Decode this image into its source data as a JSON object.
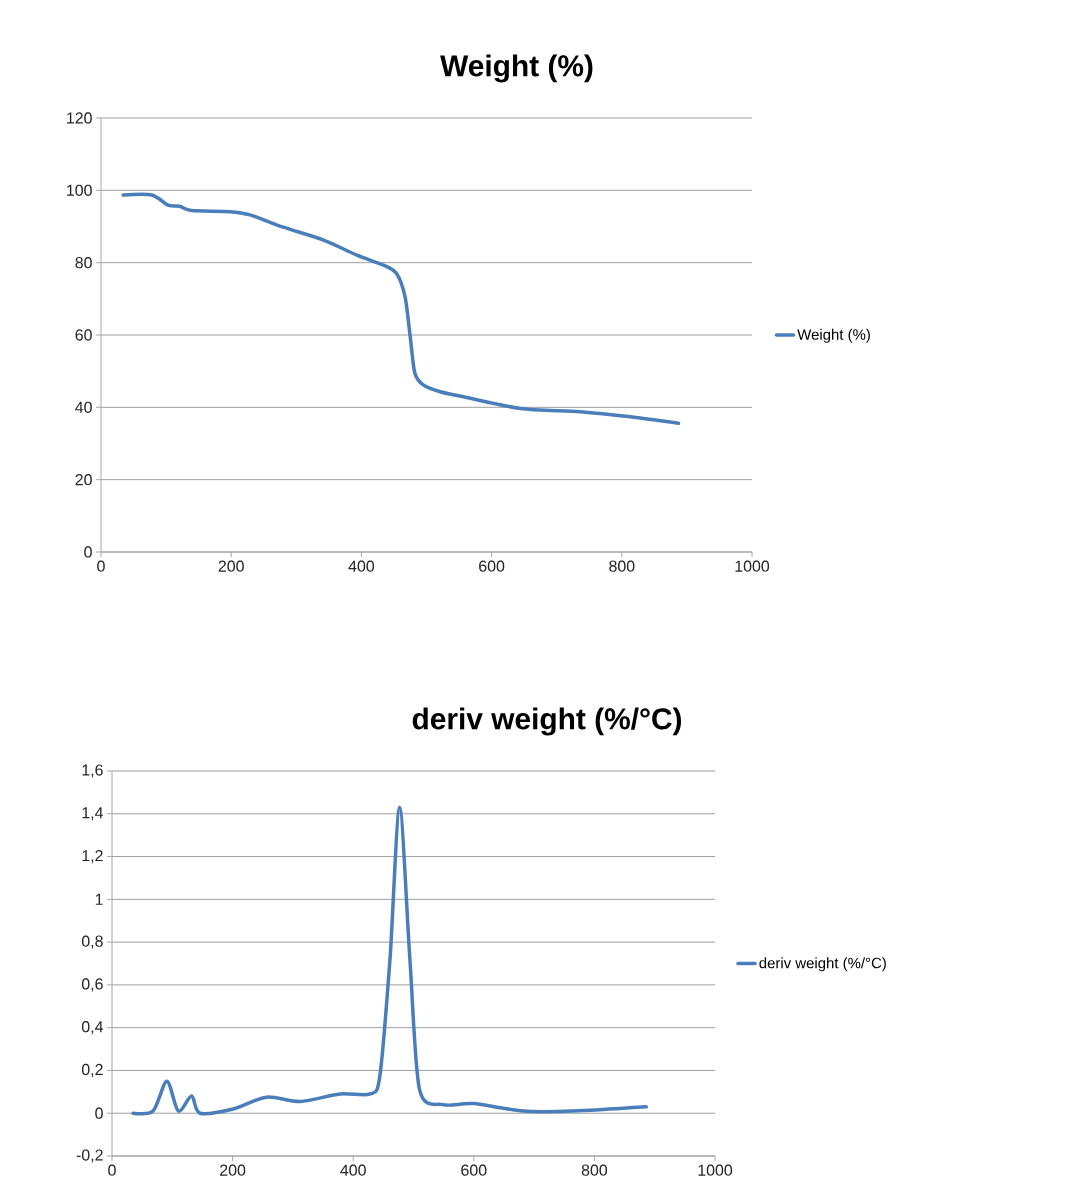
{
  "chart_data": [
    {
      "type": "line",
      "title": "Weight (%)",
      "xlim": [
        0,
        1000
      ],
      "ylim": [
        0,
        120
      ],
      "xticks": [
        0,
        200,
        400,
        600,
        800,
        1000
      ],
      "yticks": [
        0,
        20,
        40,
        60,
        80,
        100,
        120
      ],
      "grid": "y",
      "legend": "right",
      "series": [
        {
          "name": "Weight (%)",
          "color": "#4a7ebb",
          "x": [
            34,
            78,
            103,
            121,
            139,
            198,
            229,
            280,
            341,
            393,
            434,
            454,
            467,
            475,
            482,
            495,
            521,
            557,
            644,
            736,
            813,
            887
          ],
          "values": [
            98.7,
            98.7,
            95.9,
            95.6,
            94.4,
            94.1,
            93.2,
            89.8,
            86.3,
            82.1,
            79.3,
            77,
            70.6,
            59.5,
            49.5,
            46.2,
            44.3,
            42.9,
            39.7,
            38.8,
            37.4,
            35.6
          ]
        }
      ]
    },
    {
      "type": "line",
      "title": "deriv weight (%/°C)",
      "xlim": [
        0,
        1000
      ],
      "ylim": [
        -0.2,
        1.6
      ],
      "xticks": [
        0,
        200,
        400,
        600,
        800,
        1000
      ],
      "yticks": [
        {
          "value": -0.2,
          "label": "-0,2"
        },
        0,
        {
          "value": 0.2,
          "label": "0,2"
        },
        {
          "value": 0.4,
          "label": "0,4"
        },
        {
          "value": 0.6,
          "label": "0,6"
        },
        {
          "value": 0.8,
          "label": "0,8"
        },
        1,
        {
          "value": 1.2,
          "label": "1,2"
        },
        {
          "value": 1.4,
          "label": "1,4"
        },
        {
          "value": 1.6,
          "label": "1,6"
        }
      ],
      "grid": "y",
      "legend": "right",
      "series": [
        {
          "name": "deriv weight (%/°C)",
          "color": "#4a7ebb",
          "x": [
            35,
            68,
            91,
            110,
            132,
            146,
            201,
            256,
            312,
            378,
            428,
            444,
            461,
            477,
            494,
            510,
            549,
            599,
            682,
            764,
            886
          ],
          "values": [
            0.0,
            0.01,
            0.15,
            0.01,
            0.08,
            0.0,
            0.02,
            0.075,
            0.055,
            0.09,
            0.09,
            0.17,
            0.72,
            1.43,
            0.72,
            0.11,
            0.04,
            0.045,
            0.01,
            0.01,
            0.03
          ]
        }
      ]
    }
  ]
}
